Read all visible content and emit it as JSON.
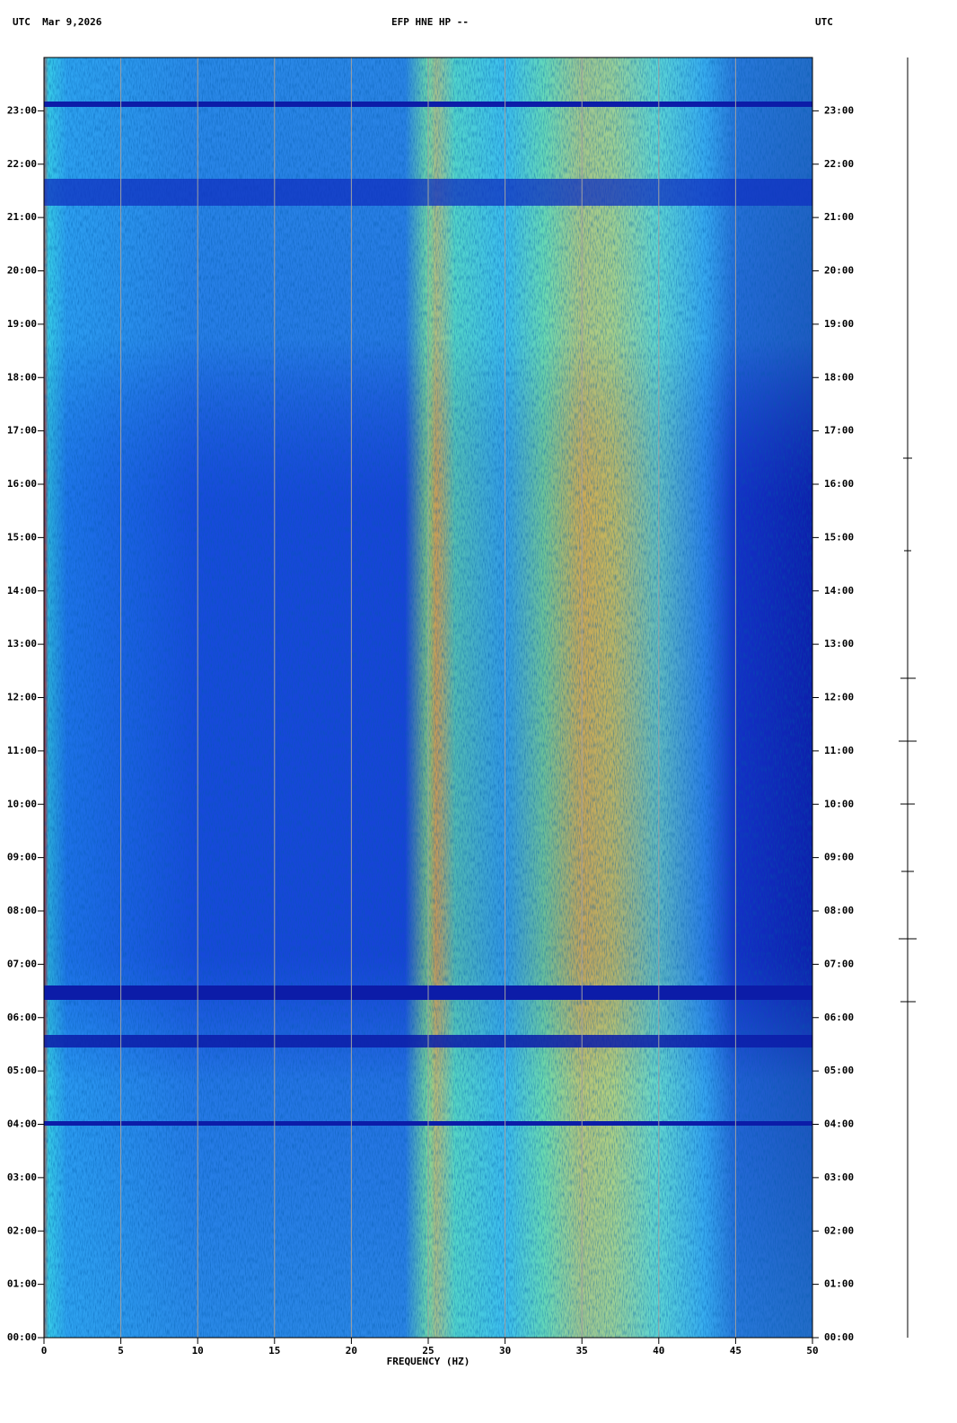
{
  "chart_data": {
    "type": "spectrogram",
    "title": "EFP HNE HP --",
    "left_header": "UTC  Mar 9,2026",
    "right_header": "UTC",
    "x_label": "FREQUENCY (HZ)",
    "xlim": [
      0,
      50
    ],
    "xticks": [
      0,
      5,
      10,
      15,
      20,
      25,
      30,
      35,
      40,
      45,
      50
    ],
    "ylim": [
      0,
      24
    ],
    "yticks": [
      {
        "value": 0,
        "label": "00:00"
      },
      {
        "value": 1,
        "label": "01:00"
      },
      {
        "value": 2,
        "label": "02:00"
      },
      {
        "value": 3,
        "label": "03:00"
      },
      {
        "value": 4,
        "label": "04:00"
      },
      {
        "value": 5,
        "label": "05:00"
      },
      {
        "value": 6,
        "label": "06:00"
      },
      {
        "value": 7,
        "label": "07:00"
      },
      {
        "value": 8,
        "label": "08:00"
      },
      {
        "value": 9,
        "label": "09:00"
      },
      {
        "value": 10,
        "label": "10:00"
      },
      {
        "value": 11,
        "label": "11:00"
      },
      {
        "value": 12,
        "label": "12:00"
      },
      {
        "value": 13,
        "label": "13:00"
      },
      {
        "value": 14,
        "label": "14:00"
      },
      {
        "value": 15,
        "label": "15:00"
      },
      {
        "value": 16,
        "label": "16:00"
      },
      {
        "value": 17,
        "label": "17:00"
      },
      {
        "value": 18,
        "label": "18:00"
      },
      {
        "value": 19,
        "label": "19:00"
      },
      {
        "value": 20,
        "label": "20:00"
      },
      {
        "value": 21,
        "label": "21:00"
      },
      {
        "value": 22,
        "label": "22:00"
      },
      {
        "value": 23,
        "label": "23:00"
      }
    ],
    "grid": true,
    "grid_color": "#a0a0a0"
  }
}
